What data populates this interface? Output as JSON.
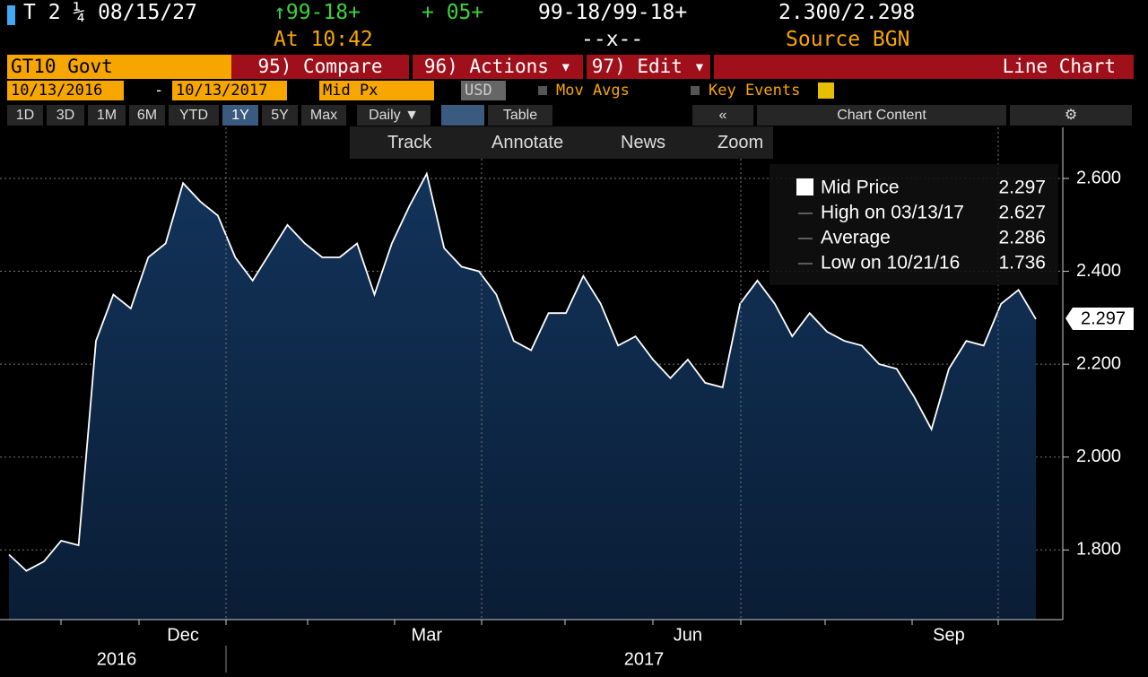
{
  "header": {
    "security": "T 2 ¼ 08/15/27",
    "price": "↑99-18+",
    "change": "+ 05+",
    "bid_ask": "99-18/99-18+",
    "yield": "2.300/2.298",
    "time": "At 10:42",
    "size": "--x--",
    "source": "Source BGN"
  },
  "toolbar": {
    "ticker": "GT10 Govt",
    "compare": "95) Compare",
    "actions": "96) Actions ▾",
    "edit": "97) Edit ▾",
    "view": "Line Chart"
  },
  "settings": {
    "start": "10/13/2016",
    "dash": "-",
    "end": "10/13/2017",
    "field": "Mid Px",
    "currency": "USD",
    "mov_avgs": "Mov Avgs",
    "key_events": "Key Events"
  },
  "periods": [
    "1D",
    "3D",
    "1M",
    "6M",
    "YTD",
    "1Y",
    "5Y",
    "Max"
  ],
  "frequency": "Daily ▼",
  "table": "Table",
  "collapse": "«",
  "chart_content": "Chart Content",
  "tools": [
    "Track",
    "Annotate",
    "News",
    "Zoom"
  ],
  "chart_data": {
    "type": "area",
    "categories": [
      null,
      null,
      null,
      null,
      null,
      null,
      null,
      null,
      null,
      null,
      "Dec",
      null,
      null,
      null,
      null,
      null,
      null,
      null,
      null,
      null,
      null,
      null,
      null,
      null,
      "Mar",
      null,
      null,
      null,
      null,
      null,
      null,
      null,
      null,
      null,
      null,
      null,
      null,
      null,
      null,
      "Jun",
      null,
      null,
      null,
      null,
      null,
      null,
      null,
      null,
      null,
      null,
      null,
      null,
      null,
      null,
      "Sep",
      null,
      null,
      null,
      null,
      null
    ],
    "year_labels": [
      "2016",
      "2017"
    ],
    "series": [
      {
        "name": "Mid Price",
        "color": "#ffffff",
        "values": [
          1.79,
          1.755,
          1.775,
          1.82,
          1.81,
          2.25,
          2.35,
          2.32,
          2.43,
          2.46,
          2.59,
          2.55,
          2.52,
          2.43,
          2.38,
          2.44,
          2.5,
          2.46,
          2.43,
          2.43,
          2.46,
          2.35,
          2.46,
          2.54,
          2.61,
          2.45,
          2.41,
          2.4,
          2.35,
          2.25,
          2.23,
          2.31,
          2.31,
          2.39,
          2.33,
          2.24,
          2.26,
          2.21,
          2.17,
          2.21,
          2.16,
          2.15,
          2.33,
          2.38,
          2.33,
          2.26,
          2.31,
          2.27,
          2.25,
          2.24,
          2.2,
          2.19,
          2.13,
          2.06,
          2.19,
          2.25,
          2.24,
          2.33,
          2.36,
          2.297
        ]
      }
    ],
    "stats": [
      {
        "label": "High on 03/13/17",
        "value": 2.627
      },
      {
        "label": "Average",
        "value": 2.286
      },
      {
        "label": "Low on 10/21/16",
        "value": 1.736
      }
    ],
    "ylim": [
      1.65,
      2.71
    ],
    "yticks": [
      {
        "value": 1.8,
        "label": "1.800"
      },
      {
        "value": 2.0,
        "label": "2.000"
      },
      {
        "value": 2.2,
        "label": "2.200"
      },
      {
        "value": 2.4,
        "label": "2.400"
      },
      {
        "value": 2.6,
        "label": "2.600"
      }
    ],
    "grid": true,
    "fill_color": "#0f2a4a"
  }
}
